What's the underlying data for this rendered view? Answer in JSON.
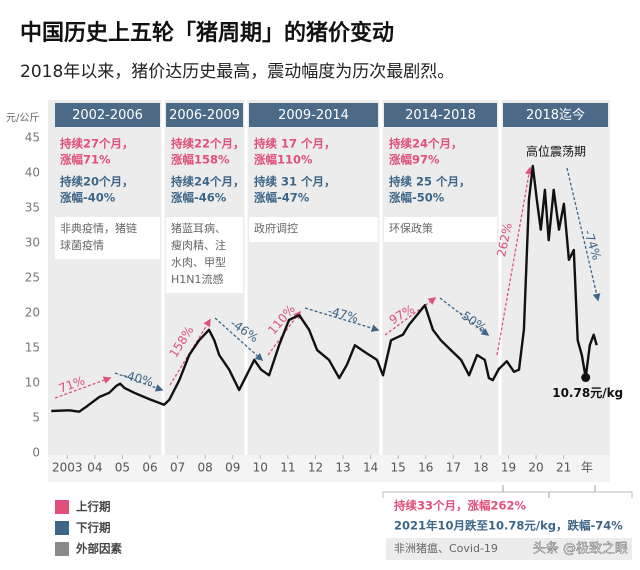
{
  "chart_data": {
    "type": "line",
    "title": "中国历史上五轮「猪周期」的猪价变动",
    "subtitle": "2018年以来，猪价达历史最高，震动幅度为历次最剧烈。",
    "y_unit": "元/公斤",
    "x_label": "年",
    "xlim": [
      2002.3,
      2022.5
    ],
    "xticks": [
      2003,
      {
        "value": 2004,
        "label": "04"
      },
      {
        "value": 2005,
        "label": "05"
      },
      {
        "value": 2006,
        "label": "06"
      },
      {
        "value": 2007,
        "label": "07"
      },
      {
        "value": 2008,
        "label": "08"
      },
      {
        "value": 2009,
        "label": "09"
      },
      {
        "value": 2010,
        "label": "10"
      },
      {
        "value": 2011,
        "label": "11"
      },
      {
        "value": 2012,
        "label": "12"
      },
      {
        "value": 2013,
        "label": "13"
      },
      {
        "value": 2014,
        "label": "14"
      },
      {
        "value": 2015,
        "label": "15"
      },
      {
        "value": 2016,
        "label": "16"
      },
      {
        "value": 2017,
        "label": "17"
      },
      {
        "value": 2018,
        "label": "18"
      },
      {
        "value": 2019,
        "label": "19"
      },
      {
        "value": 2020,
        "label": "20"
      },
      {
        "value": 2021,
        "label": "21"
      }
    ],
    "ylim": [
      0,
      45
    ],
    "yticks": [
      0,
      5,
      10,
      15,
      20,
      25,
      30,
      35,
      40,
      45
    ],
    "grid": false,
    "series": [
      {
        "name": "猪价",
        "color": "#111111",
        "x": [
          2002.42,
          2003.07,
          2003.43,
          2003.72,
          2004.16,
          2004.52,
          2004.78,
          2004.92,
          2005.07,
          2005.43,
          2005.97,
          2006.51,
          2006.7,
          2007.06,
          2007.42,
          2007.78,
          2008.14,
          2008.33,
          2008.51,
          2008.87,
          2009.23,
          2009.41,
          2009.78,
          2010.03,
          2010.32,
          2010.68,
          2011.04,
          2011.41,
          2011.77,
          2012.06,
          2012.49,
          2012.86,
          2013.14,
          2013.43,
          2013.8,
          2014.23,
          2014.45,
          2014.74,
          2015.17,
          2015.39,
          2015.68,
          2015.97,
          2016.26,
          2016.55,
          2016.91,
          2017.28,
          2017.57,
          2017.86,
          2018.14,
          2018.29,
          2018.43,
          2018.65,
          2018.94,
          2019.2,
          2019.38,
          2019.56,
          2019.74,
          2019.88,
          2020.03,
          2020.17,
          2020.32,
          2020.46,
          2020.64,
          2020.83,
          2021.01,
          2021.19,
          2021.37,
          2021.51,
          2021.66,
          2021.8,
          2021.95,
          2022.09,
          2022.2
        ],
        "values": [
          6.0,
          6.1,
          5.9,
          6.7,
          8.0,
          8.6,
          9.6,
          9.9,
          9.3,
          8.6,
          7.7,
          6.9,
          7.6,
          10.4,
          14.0,
          16.1,
          17.6,
          16.1,
          14.0,
          11.9,
          9.0,
          10.4,
          13.3,
          11.9,
          11.1,
          15.4,
          19.0,
          19.7,
          17.6,
          14.7,
          13.3,
          10.7,
          12.6,
          15.4,
          14.4,
          13.3,
          11.1,
          16.1,
          16.9,
          18.3,
          19.7,
          21.1,
          17.6,
          16.1,
          14.7,
          13.3,
          11.1,
          14.0,
          13.3,
          10.7,
          10.4,
          12.0,
          13.1,
          11.6,
          11.9,
          17.6,
          36.1,
          41.0,
          36.1,
          31.9,
          37.6,
          30.4,
          37.6,
          31.9,
          35.6,
          27.6,
          29.0,
          16.1,
          14.0,
          10.78,
          15.4,
          16.9,
          15.4
        ]
      }
    ],
    "end_label": "10.78元/kg",
    "periods": [
      {
        "label": "2002-2006",
        "up": [
          "持续27个月，",
          "涨幅71%"
        ],
        "down": [
          "持续20个月，",
          "涨幅-40%"
        ],
        "factor": [
          "非典疫情，猪链",
          "球菌疫情"
        ],
        "up_pct": "71%",
        "down_pct": "-40%"
      },
      {
        "label": "2006-2009",
        "up": [
          "持续22个月，",
          "涨幅158%"
        ],
        "down": [
          "持续24个月，",
          "涨幅-46%"
        ],
        "factor": [
          "猪蓝耳病、",
          "瘦肉精、注",
          "水肉、甲型",
          "H1N1流感"
        ],
        "up_pct": "158%",
        "down_pct": "-46%"
      },
      {
        "label": "2009-2014",
        "up": [
          "持续 17 个月，",
          "涨幅110%"
        ],
        "down": [
          "持续 31 个月，",
          "涨幅-47%"
        ],
        "factor": [
          "政府调控"
        ],
        "up_pct": "110%",
        "down_pct": "-47%"
      },
      {
        "label": "2014-2018",
        "up": [
          "持续24个月，",
          "涨幅97%"
        ],
        "down": [
          "持续 25 个月，",
          "涨幅-50%"
        ],
        "factor": [
          "环保政策"
        ],
        "up_pct": "97%",
        "down_pct": "-50%"
      },
      {
        "label": "2018迄今",
        "peak": "高位震荡期",
        "up_pct": "262%",
        "down_pct": "-74%"
      }
    ],
    "legend": [
      {
        "label": "上行期",
        "color": "#e0507a"
      },
      {
        "label": "下行期",
        "color": "#3e6688"
      },
      {
        "label": "外部因素",
        "color": "#8a8a8a"
      }
    ],
    "current": {
      "up": "持续33个月，涨幅262%",
      "down": "2021年10月跌至10.78元/kg，跌幅-74%",
      "factor": "非洲猪瘟、Covid-19"
    },
    "watermark": "头条 @极致之眼"
  }
}
